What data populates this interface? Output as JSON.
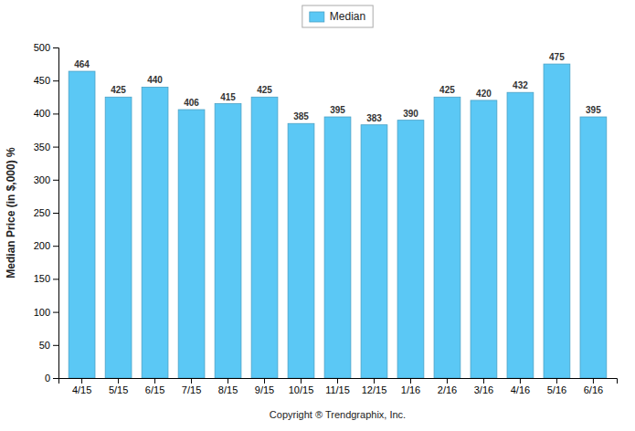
{
  "chart_data": {
    "type": "bar",
    "xlabel": "Copyright ® Trendgraphix, Inc.",
    "ylabel": "Median Price (in $,000) %",
    "categories": [
      "4/15",
      "5/15",
      "6/15",
      "7/15",
      "8/15",
      "9/15",
      "10/15",
      "11/15",
      "12/15",
      "1/16",
      "2/16",
      "3/16",
      "4/16",
      "5/16",
      "6/16"
    ],
    "series": [
      {
        "name": "Median",
        "color": "#5BC8F5",
        "values": [
          464,
          425,
          440,
          406,
          415,
          425,
          385,
          395,
          383,
          390,
          425,
          420,
          432,
          475,
          395
        ]
      }
    ],
    "ylim": [
      0,
      500
    ],
    "yticks": [
      0,
      50,
      100,
      150,
      200,
      250,
      300,
      350,
      400,
      450,
      500
    ],
    "grid": false,
    "legend": "top",
    "data_labels": true
  }
}
